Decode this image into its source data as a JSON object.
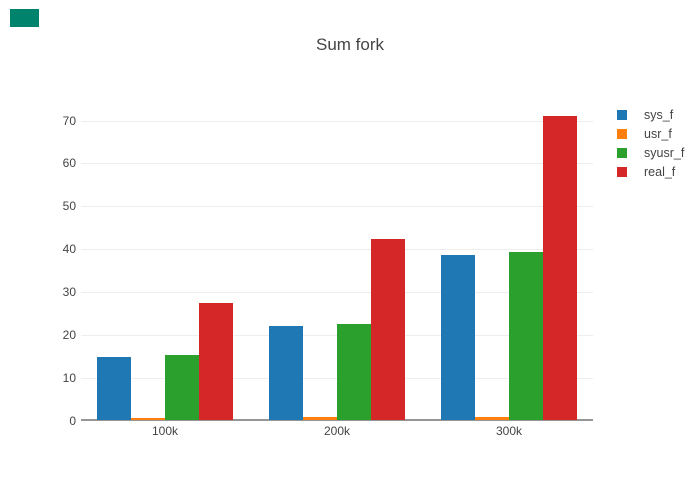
{
  "page": {
    "background_color": "#ffffff",
    "text_color": "#444444"
  },
  "corner_marker": {
    "color": "#00836C"
  },
  "chart_data": {
    "type": "bar",
    "title": "Sum fork",
    "categories": [
      "100k",
      "200k",
      "300k"
    ],
    "series": [
      {
        "name": "sys_f",
        "color": "#1f77b4",
        "values": [
          14.8,
          22.0,
          38.5
        ]
      },
      {
        "name": "usr_f",
        "color": "#ff7f0e",
        "values": [
          0.5,
          0.6,
          0.8
        ]
      },
      {
        "name": "syusr_f",
        "color": "#2ca02c",
        "values": [
          15.1,
          22.4,
          39.2
        ]
      },
      {
        "name": "real_f",
        "color": "#d62728",
        "values": [
          27.3,
          42.3,
          71.0
        ]
      }
    ],
    "xlabel": "",
    "ylabel": "",
    "yticks": [
      0,
      10,
      20,
      30,
      40,
      50,
      60,
      70
    ],
    "ylim": [
      0,
      75
    ],
    "grid": true,
    "grid_color": "#eeeeee",
    "zeroline_color": "#969696",
    "legend_position": "right",
    "bar_mode": "group"
  }
}
